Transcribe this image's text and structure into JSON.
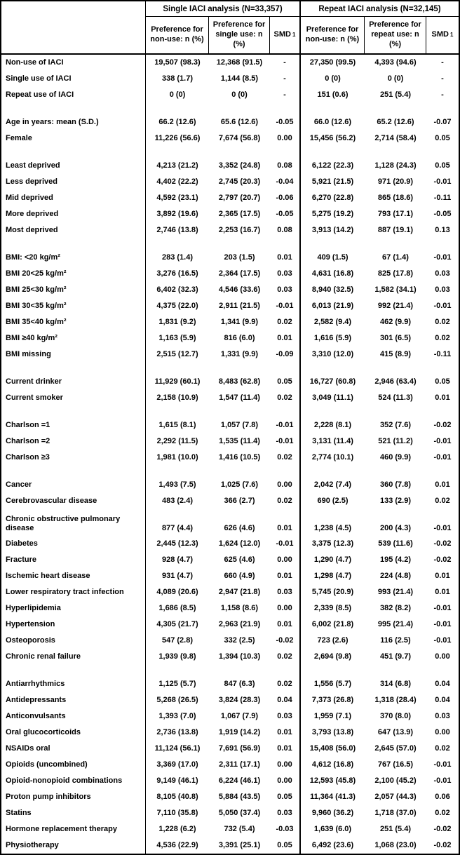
{
  "colors": {
    "background": "#ffffff",
    "border": "#000000",
    "text": "#000000"
  },
  "table": {
    "groups": [
      {
        "label": "Single IACI analysis (N=33,357)"
      },
      {
        "label": "Repeat IACI analysis (N=32,145)"
      }
    ],
    "columns": [
      {
        "label": "Preference for non-use: n (%)"
      },
      {
        "label": "Preference for single use: n (%)"
      },
      {
        "label": "SMD",
        "sup": "1"
      },
      {
        "label": "Preference for non-use: n (%)"
      },
      {
        "label": "Preference for repeat use: n (%)"
      },
      {
        "label": "SMD",
        "sup": "1"
      }
    ],
    "rows": [
      {
        "label": "Non-use of IACI",
        "values": [
          "19,507 (98.3)",
          "12,368 (91.5)",
          "-",
          "27,350 (99.5)",
          "4,393 (94.6)",
          "-"
        ]
      },
      {
        "label": "Single use of IACI",
        "values": [
          "338 (1.7)",
          "1,144 (8.5)",
          "-",
          "0 (0)",
          "0 (0)",
          "-"
        ]
      },
      {
        "label": "Repeat use of IACI",
        "values": [
          "0 (0)",
          "0 (0)",
          "-",
          "151 (0.6)",
          "251 (5.4)",
          "-"
        ]
      },
      {
        "type": "gap"
      },
      {
        "label": "Age in years: mean (S.D.)",
        "values": [
          "66.2 (12.6)",
          "65.6 (12.6)",
          "-0.05",
          "66.0 (12.6)",
          "65.2 (12.6)",
          "-0.07"
        ]
      },
      {
        "label": "Female",
        "values": [
          "11,226 (56.6)",
          "7,674 (56.8)",
          "0.00",
          "15,456 (56.2)",
          "2,714 (58.4)",
          "0.05"
        ]
      },
      {
        "type": "gap"
      },
      {
        "label": "Least deprived",
        "values": [
          "4,213 (21.2)",
          "3,352 (24.8)",
          "0.08",
          "6,122 (22.3)",
          "1,128 (24.3)",
          "0.05"
        ]
      },
      {
        "label": "Less deprived",
        "values": [
          "4,402 (22.2)",
          "2,745 (20.3)",
          "-0.04",
          "5,921 (21.5)",
          "971 (20.9)",
          "-0.01"
        ]
      },
      {
        "label": "Mid deprived",
        "values": [
          "4,592 (23.1)",
          "2,797 (20.7)",
          "-0.06",
          "6,270 (22.8)",
          "865 (18.6)",
          "-0.11"
        ]
      },
      {
        "label": "More deprived",
        "values": [
          "3,892 (19.6)",
          "2,365 (17.5)",
          "-0.05",
          "5,275 (19.2)",
          "793 (17.1)",
          "-0.05"
        ]
      },
      {
        "label": "Most deprived",
        "values": [
          "2,746 (13.8)",
          "2,253 (16.7)",
          "0.08",
          "3,913 (14.2)",
          "887 (19.1)",
          "0.13"
        ]
      },
      {
        "type": "gap"
      },
      {
        "label": "BMI: <20 kg/m²",
        "values": [
          "283 (1.4)",
          "203 (1.5)",
          "0.01",
          "409 (1.5)",
          "67 (1.4)",
          "-0.01"
        ]
      },
      {
        "label": "BMI 20<25 kg/m²",
        "values": [
          "3,276 (16.5)",
          "2,364 (17.5)",
          "0.03",
          "4,631 (16.8)",
          "825 (17.8)",
          "0.03"
        ]
      },
      {
        "label": "BMI 25<30 kg/m²",
        "values": [
          "6,402 (32.3)",
          "4,546 (33.6)",
          "0.03",
          "8,940 (32.5)",
          "1,582 (34.1)",
          "0.03"
        ]
      },
      {
        "label": "BMI 30<35 kg/m²",
        "values": [
          "4,375 (22.0)",
          "2,911 (21.5)",
          "-0.01",
          "6,013 (21.9)",
          "992 (21.4)",
          "-0.01"
        ]
      },
      {
        "label": "BMI 35<40 kg/m²",
        "values": [
          "1,831 (9.2)",
          "1,341 (9.9)",
          "0.02",
          "2,582 (9.4)",
          "462 (9.9)",
          "0.02"
        ]
      },
      {
        "label": "BMI ≥40 kg/m²",
        "values": [
          "1,163 (5.9)",
          "816 (6.0)",
          "0.01",
          "1,616 (5.9)",
          "301 (6.5)",
          "0.02"
        ]
      },
      {
        "label": "BMI missing",
        "values": [
          "2,515 (12.7)",
          "1,331 (9.9)",
          "-0.09",
          "3,310 (12.0)",
          "415 (8.9)",
          "-0.11"
        ]
      },
      {
        "type": "gap"
      },
      {
        "label": "Current drinker",
        "values": [
          "11,929 (60.1)",
          "8,483 (62.8)",
          "0.05",
          "16,727 (60.8)",
          "2,946 (63.4)",
          "0.05"
        ]
      },
      {
        "label": "Current smoker",
        "values": [
          "2,158 (10.9)",
          "1,547 (11.4)",
          "0.02",
          "3,049 (11.1)",
          "524 (11.3)",
          "0.01"
        ]
      },
      {
        "type": "gap"
      },
      {
        "label": "Charlson =1",
        "values": [
          "1,615 (8.1)",
          "1,057 (7.8)",
          "-0.01",
          "2,228 (8.1)",
          "352 (7.6)",
          "-0.02"
        ]
      },
      {
        "label": "Charlson =2",
        "values": [
          "2,292 (11.5)",
          "1,535 (11.4)",
          "-0.01",
          "3,131 (11.4)",
          "521 (11.2)",
          "-0.01"
        ]
      },
      {
        "label": "Charlson ≥3",
        "values": [
          "1,981 (10.0)",
          "1,416 (10.5)",
          "0.02",
          "2,774 (10.1)",
          "460 (9.9)",
          "-0.01"
        ]
      },
      {
        "type": "gap"
      },
      {
        "label": "Cancer",
        "values": [
          "1,493 (7.5)",
          "1,025 (7.6)",
          "0.00",
          "2,042 (7.4)",
          "360 (7.8)",
          "0.01"
        ]
      },
      {
        "label": "Cerebrovascular disease",
        "values": [
          "483 (2.4)",
          "366 (2.7)",
          "0.02",
          "690 (2.5)",
          "133 (2.9)",
          "0.02"
        ]
      },
      {
        "label": "Chronic obstructive pulmonary disease",
        "wrap": true,
        "values": [
          "877 (4.4)",
          "626 (4.6)",
          "0.01",
          "1,238 (4.5)",
          "200 (4.3)",
          "-0.01"
        ]
      },
      {
        "label": "Diabetes",
        "values": [
          "2,445 (12.3)",
          "1,624 (12.0)",
          "-0.01",
          "3,375 (12.3)",
          "539 (11.6)",
          "-0.02"
        ]
      },
      {
        "label": "Fracture",
        "values": [
          "928 (4.7)",
          "625 (4.6)",
          "0.00",
          "1,290 (4.7)",
          "195 (4.2)",
          "-0.02"
        ]
      },
      {
        "label": "Ischemic heart disease",
        "values": [
          "931 (4.7)",
          "660 (4.9)",
          "0.01",
          "1,298 (4.7)",
          "224 (4.8)",
          "0.01"
        ]
      },
      {
        "label": "Lower respiratory tract infection",
        "values": [
          "4,089 (20.6)",
          "2,947 (21.8)",
          "0.03",
          "5,745 (20.9)",
          "993 (21.4)",
          "0.01"
        ]
      },
      {
        "label": "Hyperlipidemia",
        "values": [
          "1,686 (8.5)",
          "1,158 (8.6)",
          "0.00",
          "2,339 (8.5)",
          "382 (8.2)",
          "-0.01"
        ]
      },
      {
        "label": "Hypertension",
        "values": [
          "4,305 (21.7)",
          "2,963 (21.9)",
          "0.01",
          "6,002 (21.8)",
          "995 (21.4)",
          "-0.01"
        ]
      },
      {
        "label": "Osteoporosis",
        "values": [
          "547 (2.8)",
          "332 (2.5)",
          "-0.02",
          "723 (2.6)",
          "116 (2.5)",
          "-0.01"
        ]
      },
      {
        "label": "Chronic renal failure",
        "values": [
          "1,939 (9.8)",
          "1,394 (10.3)",
          "0.02",
          "2,694 (9.8)",
          "451 (9.7)",
          "0.00"
        ]
      },
      {
        "type": "gap"
      },
      {
        "label": "Antiarrhythmics",
        "values": [
          "1,125 (5.7)",
          "847 (6.3)",
          "0.02",
          "1,556 (5.7)",
          "314 (6.8)",
          "0.04"
        ]
      },
      {
        "label": "Antidepressants",
        "values": [
          "5,268 (26.5)",
          "3,824 (28.3)",
          "0.04",
          "7,373 (26.8)",
          "1,318 (28.4)",
          "0.04"
        ]
      },
      {
        "label": "Anticonvulsants",
        "values": [
          "1,393 (7.0)",
          "1,067 (7.9)",
          "0.03",
          "1,959 (7.1)",
          "370 (8.0)",
          "0.03"
        ]
      },
      {
        "label": "Oral glucocorticoids",
        "values": [
          "2,736 (13.8)",
          "1,919 (14.2)",
          "0.01",
          "3,793 (13.8)",
          "647 (13.9)",
          "0.00"
        ]
      },
      {
        "label": "NSAIDs oral",
        "values": [
          "11,124 (56.1)",
          "7,691 (56.9)",
          "0.01",
          "15,408 (56.0)",
          "2,645 (57.0)",
          "0.02"
        ]
      },
      {
        "label": "Opioids (uncombined)",
        "values": [
          "3,369 (17.0)",
          "2,311 (17.1)",
          "0.00",
          "4,612 (16.8)",
          "767 (16.5)",
          "-0.01"
        ]
      },
      {
        "label": "Opioid-nonopioid combinations",
        "values": [
          "9,149 (46.1)",
          "6,224 (46.1)",
          "0.00",
          "12,593 (45.8)",
          "2,100 (45.2)",
          "-0.01"
        ]
      },
      {
        "label": "Proton pump inhibitors",
        "values": [
          "8,105 (40.8)",
          "5,884 (43.5)",
          "0.05",
          "11,364 (41.3)",
          "2,057 (44.3)",
          "0.06"
        ]
      },
      {
        "label": "Statins",
        "values": [
          "7,110 (35.8)",
          "5,050 (37.4)",
          "0.03",
          "9,960 (36.2)",
          "1,718 (37.0)",
          "0.02"
        ]
      },
      {
        "label": "Hormone replacement therapy",
        "values": [
          "1,228 (6.2)",
          "732 (5.4)",
          "-0.03",
          "1,639 (6.0)",
          "251 (5.4)",
          "-0.02"
        ]
      },
      {
        "label": "Physiotherapy",
        "values": [
          "4,536 (22.9)",
          "3,391 (25.1)",
          "0.05",
          "6,492 (23.6)",
          "1,068 (23.0)",
          "-0.02"
        ]
      }
    ]
  }
}
